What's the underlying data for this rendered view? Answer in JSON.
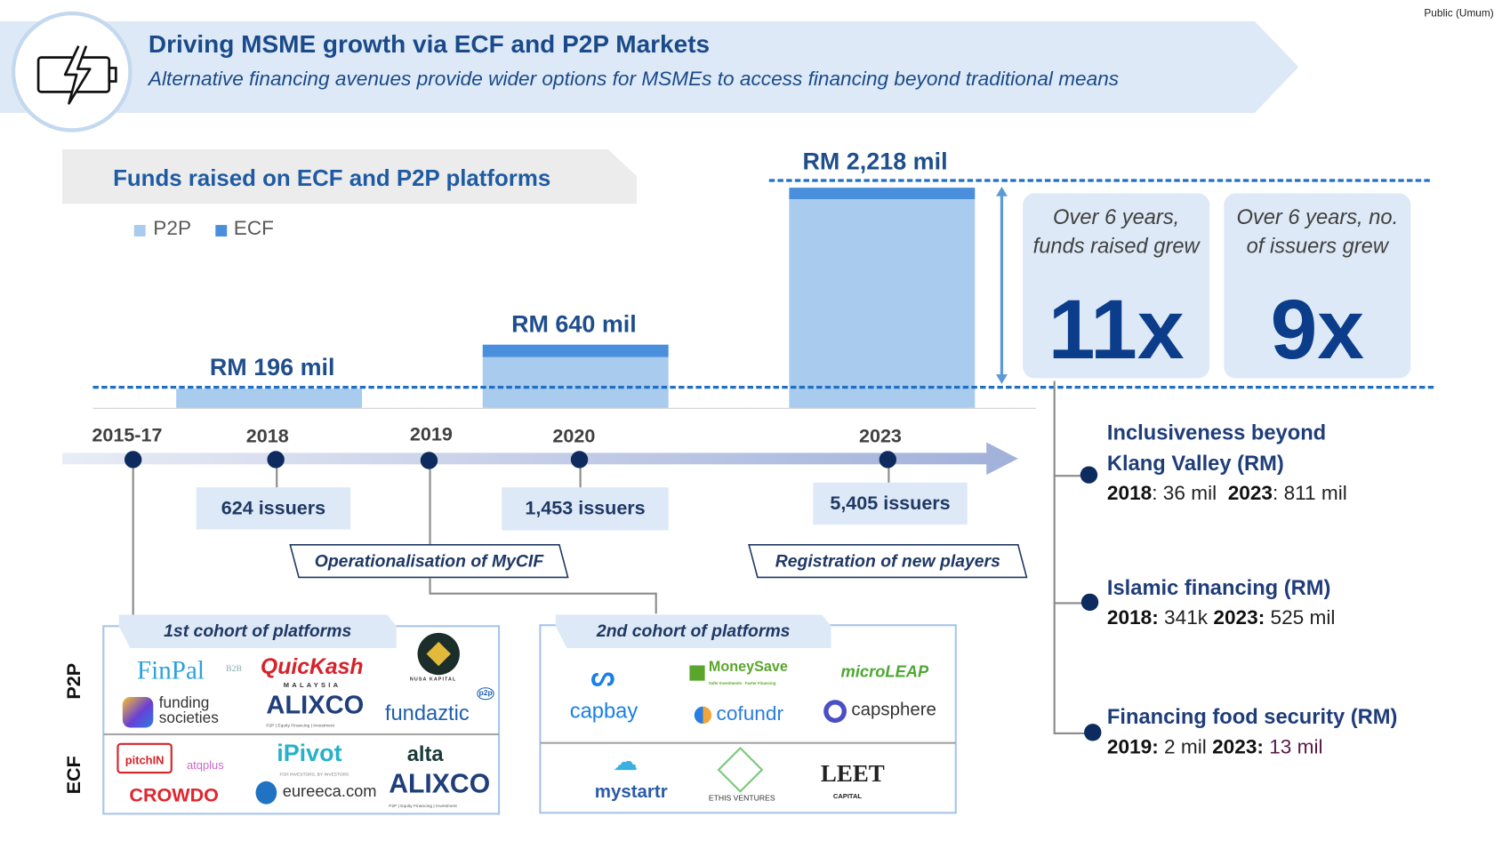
{
  "header": {
    "title": "Driving MSME growth via ECF and P2P Markets",
    "subtitle": "Alternative financing avenues provide wider options for MSMEs to access financing beyond traditional means",
    "classification": "Public (Umum)",
    "icon": "battery-charging-icon"
  },
  "chart_data": {
    "type": "bar",
    "title": "Funds raised on ECF and P2P platforms",
    "categories": [
      "2018",
      "2020",
      "2023"
    ],
    "series": [
      {
        "name": "P2P",
        "color": "#a9cbee",
        "values": [
          196,
          515,
          2098
        ]
      },
      {
        "name": "ECF",
        "color": "#4a8fdb",
        "values": [
          0,
          125,
          120
        ]
      }
    ],
    "totals": [
      196,
      640,
      2218
    ],
    "data_labels": [
      "RM 196 mil",
      "RM 640 mil",
      "RM 2,218 mil"
    ],
    "ylabel": "RM mil",
    "ylim": [
      0,
      2218
    ]
  },
  "legend": {
    "p2p": "P2P",
    "ecf": "ECF"
  },
  "stats": [
    {
      "caption1": "Over 6 years,",
      "caption2": "funds raised grew",
      "value": "11x"
    },
    {
      "caption1": "Over 6 years, no.",
      "caption2": "of issuers grew",
      "value": "9x"
    }
  ],
  "timeline": {
    "years": [
      "2015-17",
      "2018",
      "2019",
      "2020",
      "2023"
    ],
    "issuers": [
      "624 issuers",
      "1,453 issuers",
      "5,405 issuers"
    ],
    "events": [
      "Operationalisation of MyCIF",
      "Registration of new players"
    ]
  },
  "cohorts": {
    "first": "1st cohort of platforms",
    "second": "2nd cohort of platforms",
    "p2p_label": "P2P",
    "ecf_label": "ECF",
    "logos1": [
      "B2B",
      "FinPal",
      "QuicKash",
      "MALAYSIA",
      "NUSA KAPITAL",
      "funding",
      "societies",
      "ALIXCO",
      "P2P | Equity Financing | Investment",
      "fundaztic",
      "p2p",
      "pitchIN",
      "atqplus",
      "CROWDO",
      "iPivot",
      "FOR INVESTORS. BY INVESTORS",
      "eureeca.com",
      "alta",
      "ALIXCO",
      "P2P | Equity Financing | Investment"
    ],
    "logos2": [
      "capbay",
      "MoneySave",
      "Safer Investments · Faster Financing",
      "microLEAP",
      "cofundr",
      "capsphere",
      "mystartr",
      "ETHIS VENTURES",
      "LEET",
      "CAPITAL"
    ]
  },
  "highlights": [
    {
      "title1": "Inclusiveness beyond",
      "title2": "Klang Valley (RM)",
      "y1": "2018",
      "v1": ": 36 mil",
      "y2": "2023",
      "v2": ": 811 mil"
    },
    {
      "title1": "Islamic financing (RM)",
      "y1": "2018:",
      "v1": " 341k ",
      "y2": "2023:",
      "v2": " 525 mil"
    },
    {
      "title1": "Financing food security (RM)",
      "y1": "2019:",
      "v1": " 2 mil ",
      "y2": "2023:",
      "v2": " 13 mil"
    }
  ]
}
